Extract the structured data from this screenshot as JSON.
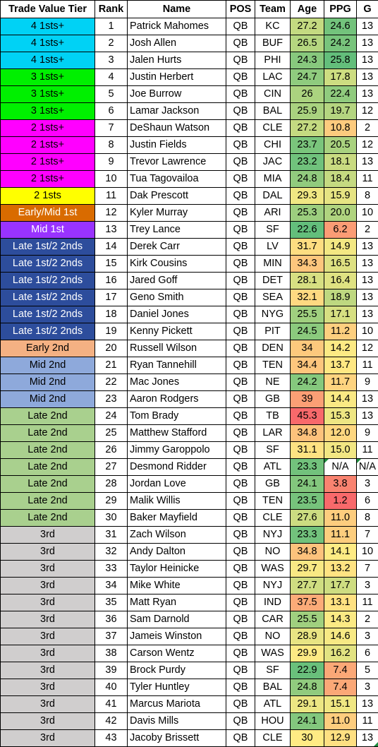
{
  "headers": {
    "tier": "Trade Value Tier",
    "rank": "Rank",
    "name": "Name",
    "pos": "POS",
    "team": "Team",
    "age": "Age",
    "ppg": "PPG",
    "g": "G"
  },
  "tier_colors": {
    "4 1sts+": "#00d2f5",
    "3 1sts+": "#00f000",
    "2 1sts+": "#ff00ff",
    "2 1sts": "#ffff00",
    "Early/Mid 1st": "#d96b00",
    "Mid 1st": "#9933ff",
    "Late 1st/2 2nds": "#2d4d9c",
    "Early 2nd": "#f4b183",
    "Mid 2nd": "#8ea9db",
    "Late 2nd": "#a9d08e",
    "3rd": "#d0cece"
  },
  "rows": [
    {
      "tier": "4 1sts+",
      "rank": "1",
      "name": "Patrick Mahomes",
      "pos": "QB",
      "team": "KC",
      "age": "27.2",
      "ppg": "24.6",
      "g": "13"
    },
    {
      "tier": "4 1sts+",
      "rank": "2",
      "name": "Josh Allen",
      "pos": "QB",
      "team": "BUF",
      "age": "26.5",
      "ppg": "24.2",
      "g": "13"
    },
    {
      "tier": "4 1sts+",
      "rank": "3",
      "name": "Jalen Hurts",
      "pos": "QB",
      "team": "PHI",
      "age": "24.3",
      "ppg": "25.8",
      "g": "13"
    },
    {
      "tier": "3 1sts+",
      "rank": "4",
      "name": "Justin Herbert",
      "pos": "QB",
      "team": "LAC",
      "age": "24.7",
      "ppg": "17.8",
      "g": "13"
    },
    {
      "tier": "3 1sts+",
      "rank": "5",
      "name": "Joe Burrow",
      "pos": "QB",
      "team": "CIN",
      "age": "26",
      "ppg": "22.4",
      "g": "13"
    },
    {
      "tier": "3 1sts+",
      "rank": "6",
      "name": "Lamar Jackson",
      "pos": "QB",
      "team": "BAL",
      "age": "25.9",
      "ppg": "19.7",
      "g": "12"
    },
    {
      "tier": "2 1sts+",
      "rank": "7",
      "name": "DeShaun Watson",
      "pos": "QB",
      "team": "CLE",
      "age": "27.2",
      "ppg": "10.8",
      "g": "2"
    },
    {
      "tier": "2 1sts+",
      "rank": "8",
      "name": "Justin Fields",
      "pos": "QB",
      "team": "CHI",
      "age": "23.7",
      "ppg": "20.5",
      "g": "12"
    },
    {
      "tier": "2 1sts+",
      "rank": "9",
      "name": "Trevor Lawrence",
      "pos": "QB",
      "team": "JAC",
      "age": "23.2",
      "ppg": "18.1",
      "g": "13"
    },
    {
      "tier": "2 1sts+",
      "rank": "10",
      "name": "Tua Tagovailoa",
      "pos": "QB",
      "team": "MIA",
      "age": "24.8",
      "ppg": "18.4",
      "g": "11"
    },
    {
      "tier": "2 1sts",
      "rank": "11",
      "name": "Dak Prescott",
      "pos": "QB",
      "team": "DAL",
      "age": "29.3",
      "ppg": "15.9",
      "g": "8"
    },
    {
      "tier": "Early/Mid 1st",
      "rank": "12",
      "name": "Kyler Murray",
      "pos": "QB",
      "team": "ARI",
      "age": "25.3",
      "ppg": "20.0",
      "g": "10"
    },
    {
      "tier": "Mid 1st",
      "rank": "13",
      "name": "Trey Lance",
      "pos": "QB",
      "team": "SF",
      "age": "22.6",
      "ppg": "6.2",
      "g": "2"
    },
    {
      "tier": "Late 1st/2 2nds",
      "rank": "14",
      "name": "Derek Carr",
      "pos": "QB",
      "team": "LV",
      "age": "31.7",
      "ppg": "14.9",
      "g": "13"
    },
    {
      "tier": "Late 1st/2 2nds",
      "rank": "15",
      "name": "Kirk Cousins",
      "pos": "QB",
      "team": "MIN",
      "age": "34.3",
      "ppg": "16.5",
      "g": "13"
    },
    {
      "tier": "Late 1st/2 2nds",
      "rank": "16",
      "name": "Jared Goff",
      "pos": "QB",
      "team": "DET",
      "age": "28.1",
      "ppg": "16.4",
      "g": "13"
    },
    {
      "tier": "Late 1st/2 2nds",
      "rank": "17",
      "name": "Geno Smith",
      "pos": "QB",
      "team": "SEA",
      "age": "32.1",
      "ppg": "18.9",
      "g": "13"
    },
    {
      "tier": "Late 1st/2 2nds",
      "rank": "18",
      "name": "Daniel Jones",
      "pos": "QB",
      "team": "NYG",
      "age": "25.5",
      "ppg": "17.1",
      "g": "13"
    },
    {
      "tier": "Late 1st/2 2nds",
      "rank": "19",
      "name": "Kenny Pickett",
      "pos": "QB",
      "team": "PIT",
      "age": "24.5",
      "ppg": "11.2",
      "g": "10"
    },
    {
      "tier": "Early 2nd",
      "rank": "20",
      "name": "Russell Wilson",
      "pos": "QB",
      "team": "DEN",
      "age": "34",
      "ppg": "14.2",
      "g": "12"
    },
    {
      "tier": "Mid 2nd",
      "rank": "21",
      "name": "Ryan Tannehill",
      "pos": "QB",
      "team": "TEN",
      "age": "34.4",
      "ppg": "13.7",
      "g": "11"
    },
    {
      "tier": "Mid 2nd",
      "rank": "22",
      "name": "Mac Jones",
      "pos": "QB",
      "team": "NE",
      "age": "24.2",
      "ppg": "11.7",
      "g": "9"
    },
    {
      "tier": "Mid 2nd",
      "rank": "23",
      "name": "Aaron Rodgers",
      "pos": "QB",
      "team": "GB",
      "age": "39",
      "ppg": "14.4",
      "g": "13"
    },
    {
      "tier": "Late 2nd",
      "rank": "24",
      "name": "Tom Brady",
      "pos": "QB",
      "team": "TB",
      "age": "45.3",
      "ppg": "15.3",
      "g": "13"
    },
    {
      "tier": "Late 2nd",
      "rank": "25",
      "name": "Matthew Stafford",
      "pos": "QB",
      "team": "LAR",
      "age": "34.8",
      "ppg": "12.0",
      "g": "9"
    },
    {
      "tier": "Late 2nd",
      "rank": "26",
      "name": "Jimmy Garoppolo",
      "pos": "QB",
      "team": "SF",
      "age": "31.1",
      "ppg": "15.0",
      "g": "11"
    },
    {
      "tier": "Late 2nd",
      "rank": "27",
      "name": "Desmond Ridder",
      "pos": "QB",
      "team": "ATL",
      "age": "23.3",
      "ppg": "N/A",
      "g": "N/A"
    },
    {
      "tier": "Late 2nd",
      "rank": "28",
      "name": "Jordan Love",
      "pos": "QB",
      "team": "GB",
      "age": "24.1",
      "ppg": "3.8",
      "g": "3"
    },
    {
      "tier": "Late 2nd",
      "rank": "29",
      "name": "Malik Willis",
      "pos": "QB",
      "team": "TEN",
      "age": "23.5",
      "ppg": "1.2",
      "g": "6"
    },
    {
      "tier": "Late 2nd",
      "rank": "30",
      "name": "Baker Mayfield",
      "pos": "QB",
      "team": "CLE",
      "age": "27.6",
      "ppg": "11.0",
      "g": "8"
    },
    {
      "tier": "3rd",
      "rank": "31",
      "name": "Zach Wilson",
      "pos": "QB",
      "team": "NYJ",
      "age": "23.3",
      "ppg": "11.1",
      "g": "7"
    },
    {
      "tier": "3rd",
      "rank": "32",
      "name": "Andy Dalton",
      "pos": "QB",
      "team": "NO",
      "age": "34.8",
      "ppg": "14.1",
      "g": "10"
    },
    {
      "tier": "3rd",
      "rank": "33",
      "name": "Taylor Heinicke",
      "pos": "QB",
      "team": "WAS",
      "age": "29.7",
      "ppg": "13.2",
      "g": "7"
    },
    {
      "tier": "3rd",
      "rank": "34",
      "name": "Mike White",
      "pos": "QB",
      "team": "NYJ",
      "age": "27.7",
      "ppg": "17.7",
      "g": "3"
    },
    {
      "tier": "3rd",
      "rank": "35",
      "name": "Matt Ryan",
      "pos": "QB",
      "team": "IND",
      "age": "37.5",
      "ppg": "13.1",
      "g": "11"
    },
    {
      "tier": "3rd",
      "rank": "36",
      "name": "Sam Darnold",
      "pos": "QB",
      "team": "CAR",
      "age": "25.5",
      "ppg": "14.3",
      "g": "2"
    },
    {
      "tier": "3rd",
      "rank": "37",
      "name": "Jameis Winston",
      "pos": "QB",
      "team": "NO",
      "age": "28.9",
      "ppg": "14.6",
      "g": "3"
    },
    {
      "tier": "3rd",
      "rank": "38",
      "name": "Carson Wentz",
      "pos": "QB",
      "team": "WAS",
      "age": "29.9",
      "ppg": "16.2",
      "g": "6"
    },
    {
      "tier": "3rd",
      "rank": "39",
      "name": "Brock Purdy",
      "pos": "QB",
      "team": "SF",
      "age": "22.9",
      "ppg": "7.4",
      "g": "5"
    },
    {
      "tier": "3rd",
      "rank": "40",
      "name": "Tyler Huntley",
      "pos": "QB",
      "team": "BAL",
      "age": "24.8",
      "ppg": "7.4",
      "g": "3"
    },
    {
      "tier": "3rd",
      "rank": "41",
      "name": "Marcus Mariota",
      "pos": "QB",
      "team": "ATL",
      "age": "29.1",
      "ppg": "15.1",
      "g": "13"
    },
    {
      "tier": "3rd",
      "rank": "42",
      "name": "Davis Mills",
      "pos": "QB",
      "team": "HOU",
      "age": "24.1",
      "ppg": "11.0",
      "g": "11"
    },
    {
      "tier": "3rd",
      "rank": "43",
      "name": "Jacoby Brissett",
      "pos": "QB",
      "team": "CLE",
      "age": "30",
      "ppg": "12.9",
      "g": "13"
    }
  ]
}
